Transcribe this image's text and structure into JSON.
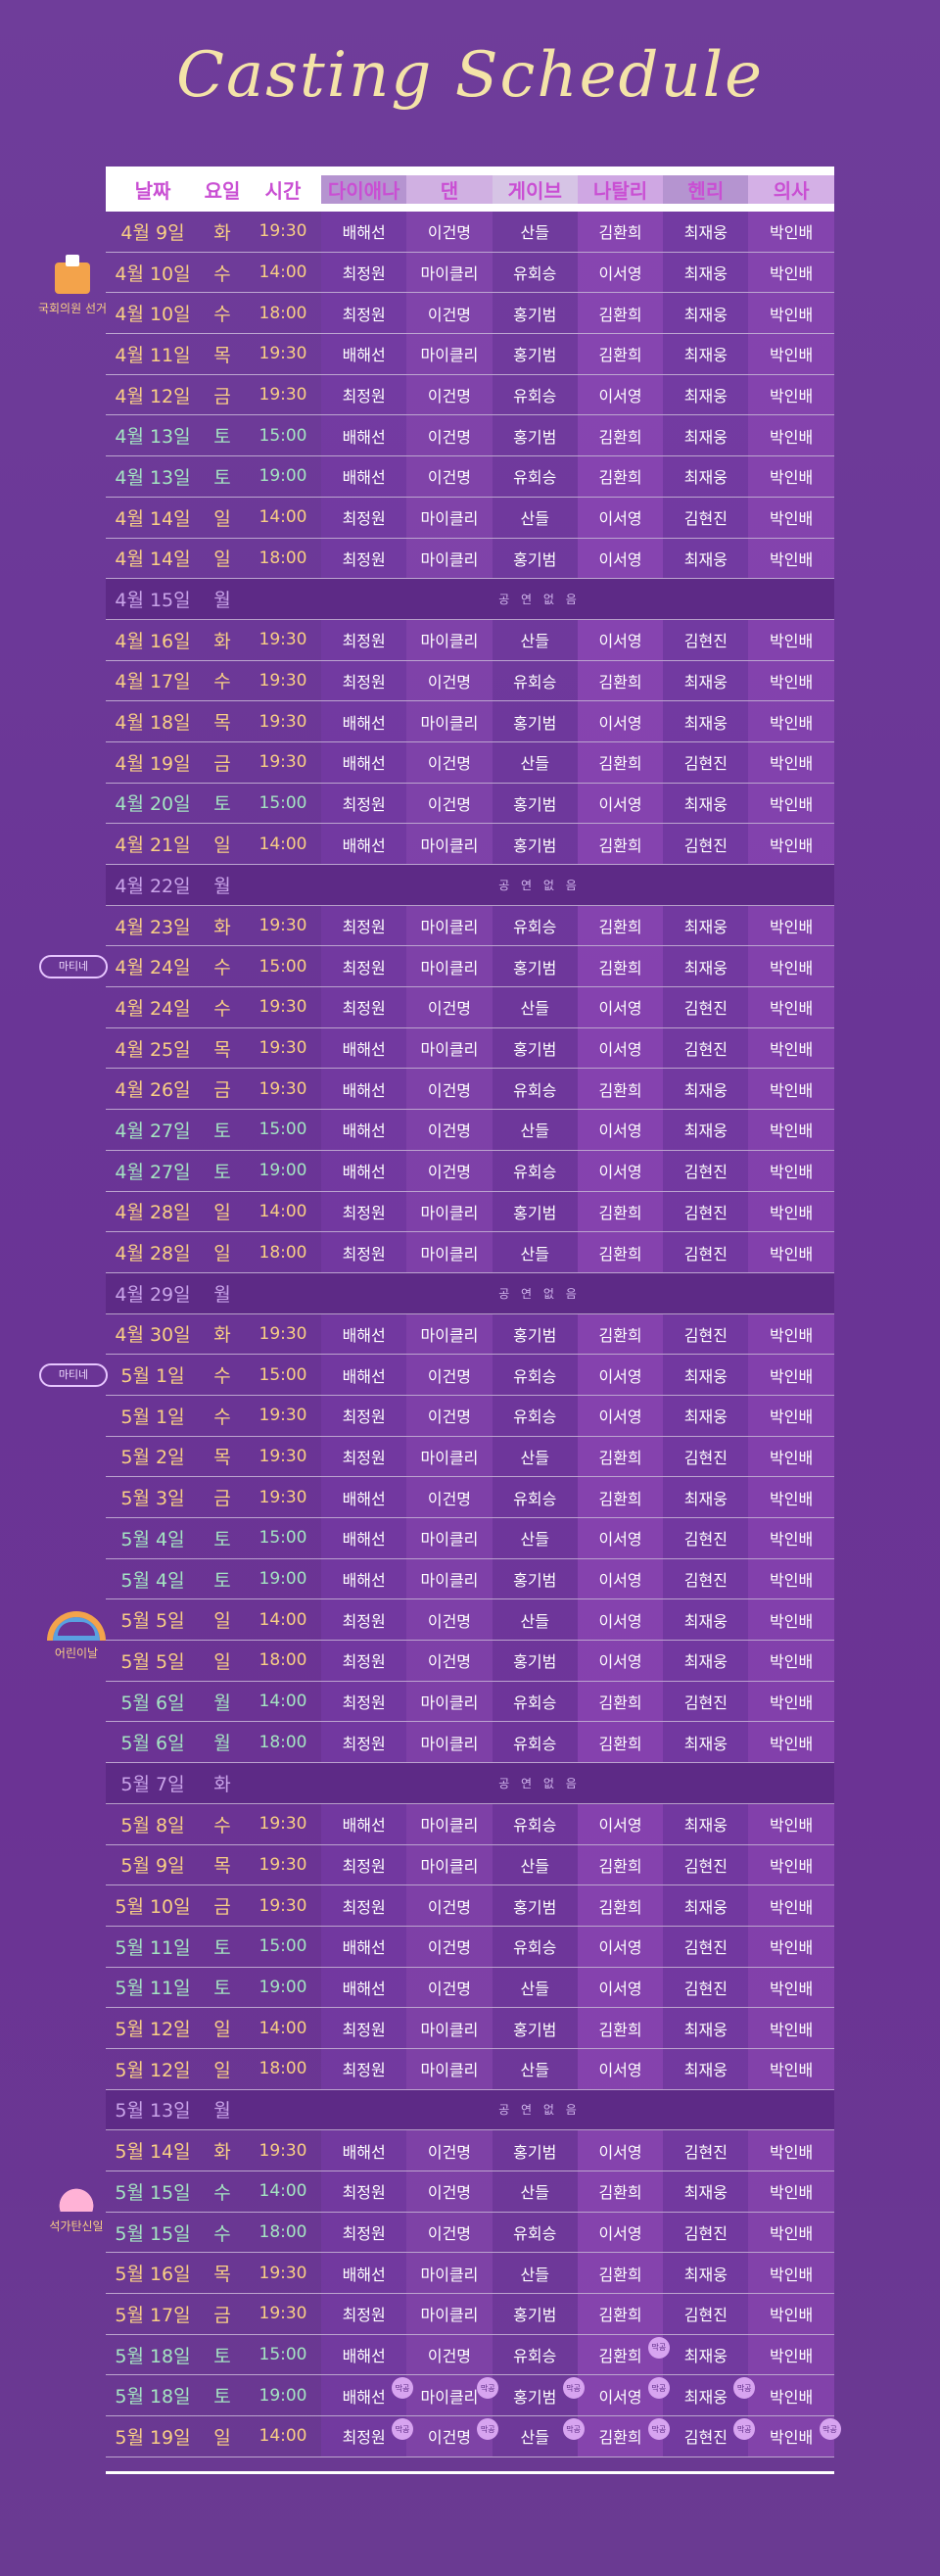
{
  "title": "Casting Schedule",
  "headers": [
    "날짜",
    "요일",
    "시간",
    "다이애나",
    "댄",
    "게이브",
    "나탈리",
    "헨리",
    "의사"
  ],
  "no_show_text": "공 연 없 음",
  "side_labels": {
    "election": "국회의원 선거",
    "matinee1": "마티네",
    "matinee2": "마티네",
    "childrens_day": "어린이날",
    "buddha": "석가탄신일"
  },
  "badge_text": "막공",
  "rows": [
    {
      "date": "4월 9일",
      "day": "화",
      "time": "19:30",
      "cast": [
        "배해선",
        "이건명",
        "산들",
        "김환희",
        "최재웅",
        "박인배"
      ]
    },
    {
      "date": "4월 10일",
      "day": "수",
      "time": "14:00",
      "cast": [
        "최정원",
        "마이클리",
        "유회승",
        "이서영",
        "최재웅",
        "박인배"
      ]
    },
    {
      "date": "4월 10일",
      "day": "수",
      "time": "18:00",
      "cast": [
        "최정원",
        "이건명",
        "홍기범",
        "김환희",
        "최재웅",
        "박인배"
      ]
    },
    {
      "date": "4월 11일",
      "day": "목",
      "time": "19:30",
      "cast": [
        "배해선",
        "마이클리",
        "홍기범",
        "김환희",
        "최재웅",
        "박인배"
      ]
    },
    {
      "date": "4월 12일",
      "day": "금",
      "time": "19:30",
      "cast": [
        "최정원",
        "이건명",
        "유회승",
        "이서영",
        "최재웅",
        "박인배"
      ]
    },
    {
      "date": "4월 13일",
      "day": "토",
      "time": "15:00",
      "green": true,
      "cast": [
        "배해선",
        "이건명",
        "홍기범",
        "김환희",
        "최재웅",
        "박인배"
      ]
    },
    {
      "date": "4월 13일",
      "day": "토",
      "time": "19:00",
      "green": true,
      "cast": [
        "배해선",
        "이건명",
        "유회승",
        "김환희",
        "최재웅",
        "박인배"
      ]
    },
    {
      "date": "4월 14일",
      "day": "일",
      "time": "14:00",
      "cast": [
        "최정원",
        "마이클리",
        "산들",
        "이서영",
        "김현진",
        "박인배"
      ]
    },
    {
      "date": "4월 14일",
      "day": "일",
      "time": "18:00",
      "cast": [
        "최정원",
        "마이클리",
        "홍기범",
        "이서영",
        "최재웅",
        "박인배"
      ]
    },
    {
      "date": "4월 15일",
      "day": "월",
      "off": true
    },
    {
      "date": "4월 16일",
      "day": "화",
      "time": "19:30",
      "cast": [
        "최정원",
        "마이클리",
        "산들",
        "이서영",
        "김현진",
        "박인배"
      ]
    },
    {
      "date": "4월 17일",
      "day": "수",
      "time": "19:30",
      "cast": [
        "최정원",
        "이건명",
        "유회승",
        "김환희",
        "최재웅",
        "박인배"
      ]
    },
    {
      "date": "4월 18일",
      "day": "목",
      "time": "19:30",
      "cast": [
        "배해선",
        "마이클리",
        "홍기범",
        "이서영",
        "최재웅",
        "박인배"
      ]
    },
    {
      "date": "4월 19일",
      "day": "금",
      "time": "19:30",
      "cast": [
        "배해선",
        "이건명",
        "산들",
        "김환희",
        "김현진",
        "박인배"
      ]
    },
    {
      "date": "4월 20일",
      "day": "토",
      "time": "15:00",
      "green": true,
      "cast": [
        "최정원",
        "이건명",
        "홍기범",
        "이서영",
        "최재웅",
        "박인배"
      ]
    },
    {
      "date": "4월 21일",
      "day": "일",
      "time": "14:00",
      "cast": [
        "배해선",
        "마이클리",
        "홍기범",
        "김환희",
        "김현진",
        "박인배"
      ]
    },
    {
      "date": "4월 22일",
      "day": "월",
      "off": true
    },
    {
      "date": "4월 23일",
      "day": "화",
      "time": "19:30",
      "cast": [
        "최정원",
        "마이클리",
        "유회승",
        "김환희",
        "최재웅",
        "박인배"
      ]
    },
    {
      "date": "4월 24일",
      "day": "수",
      "time": "15:00",
      "cast": [
        "최정원",
        "마이클리",
        "홍기범",
        "김환희",
        "최재웅",
        "박인배"
      ]
    },
    {
      "date": "4월 24일",
      "day": "수",
      "time": "19:30",
      "cast": [
        "최정원",
        "이건명",
        "산들",
        "이서영",
        "김현진",
        "박인배"
      ]
    },
    {
      "date": "4월 25일",
      "day": "목",
      "time": "19:30",
      "cast": [
        "배해선",
        "마이클리",
        "홍기범",
        "이서영",
        "김현진",
        "박인배"
      ]
    },
    {
      "date": "4월 26일",
      "day": "금",
      "time": "19:30",
      "cast": [
        "배해선",
        "이건명",
        "유회승",
        "김환희",
        "최재웅",
        "박인배"
      ]
    },
    {
      "date": "4월 27일",
      "day": "토",
      "time": "15:00",
      "green": true,
      "cast": [
        "배해선",
        "이건명",
        "산들",
        "이서영",
        "최재웅",
        "박인배"
      ]
    },
    {
      "date": "4월 27일",
      "day": "토",
      "time": "19:00",
      "green": true,
      "cast": [
        "배해선",
        "이건명",
        "유회승",
        "이서영",
        "김현진",
        "박인배"
      ]
    },
    {
      "date": "4월 28일",
      "day": "일",
      "time": "14:00",
      "cast": [
        "최정원",
        "마이클리",
        "홍기범",
        "김환희",
        "김현진",
        "박인배"
      ]
    },
    {
      "date": "4월 28일",
      "day": "일",
      "time": "18:00",
      "cast": [
        "최정원",
        "마이클리",
        "산들",
        "김환희",
        "김현진",
        "박인배"
      ]
    },
    {
      "date": "4월 29일",
      "day": "월",
      "off": true
    },
    {
      "date": "4월 30일",
      "day": "화",
      "time": "19:30",
      "cast": [
        "배해선",
        "마이클리",
        "홍기범",
        "김환희",
        "김현진",
        "박인배"
      ]
    },
    {
      "date": "5월 1일",
      "day": "수",
      "time": "15:00",
      "cast": [
        "배해선",
        "이건명",
        "유회승",
        "이서영",
        "최재웅",
        "박인배"
      ]
    },
    {
      "date": "5월 1일",
      "day": "수",
      "time": "19:30",
      "cast": [
        "최정원",
        "이건명",
        "유회승",
        "이서영",
        "최재웅",
        "박인배"
      ]
    },
    {
      "date": "5월 2일",
      "day": "목",
      "time": "19:30",
      "cast": [
        "최정원",
        "마이클리",
        "산들",
        "김환희",
        "김현진",
        "박인배"
      ]
    },
    {
      "date": "5월 3일",
      "day": "금",
      "time": "19:30",
      "cast": [
        "배해선",
        "이건명",
        "유회승",
        "김환희",
        "최재웅",
        "박인배"
      ]
    },
    {
      "date": "5월 4일",
      "day": "토",
      "time": "15:00",
      "green": true,
      "cast": [
        "배해선",
        "마이클리",
        "산들",
        "이서영",
        "김현진",
        "박인배"
      ]
    },
    {
      "date": "5월 4일",
      "day": "토",
      "time": "19:00",
      "green": true,
      "cast": [
        "배해선",
        "마이클리",
        "홍기범",
        "이서영",
        "김현진",
        "박인배"
      ]
    },
    {
      "date": "5월 5일",
      "day": "일",
      "time": "14:00",
      "cast": [
        "최정원",
        "이건명",
        "산들",
        "이서영",
        "최재웅",
        "박인배"
      ]
    },
    {
      "date": "5월 5일",
      "day": "일",
      "time": "18:00",
      "cast": [
        "최정원",
        "이건명",
        "홍기범",
        "이서영",
        "최재웅",
        "박인배"
      ]
    },
    {
      "date": "5월 6일",
      "day": "월",
      "time": "14:00",
      "green": true,
      "cast": [
        "최정원",
        "마이클리",
        "유회승",
        "김환희",
        "김현진",
        "박인배"
      ]
    },
    {
      "date": "5월 6일",
      "day": "월",
      "time": "18:00",
      "green": true,
      "cast": [
        "최정원",
        "마이클리",
        "유회승",
        "김환희",
        "최재웅",
        "박인배"
      ]
    },
    {
      "date": "5월 7일",
      "day": "화",
      "off": true
    },
    {
      "date": "5월 8일",
      "day": "수",
      "time": "19:30",
      "cast": [
        "배해선",
        "마이클리",
        "유회승",
        "이서영",
        "최재웅",
        "박인배"
      ]
    },
    {
      "date": "5월 9일",
      "day": "목",
      "time": "19:30",
      "cast": [
        "최정원",
        "마이클리",
        "산들",
        "김환희",
        "김현진",
        "박인배"
      ]
    },
    {
      "date": "5월 10일",
      "day": "금",
      "time": "19:30",
      "cast": [
        "최정원",
        "이건명",
        "홍기범",
        "김환희",
        "최재웅",
        "박인배"
      ]
    },
    {
      "date": "5월 11일",
      "day": "토",
      "time": "15:00",
      "green": true,
      "cast": [
        "배해선",
        "이건명",
        "유회승",
        "이서영",
        "김현진",
        "박인배"
      ]
    },
    {
      "date": "5월 11일",
      "day": "토",
      "time": "19:00",
      "green": true,
      "cast": [
        "배해선",
        "이건명",
        "산들",
        "이서영",
        "김현진",
        "박인배"
      ]
    },
    {
      "date": "5월 12일",
      "day": "일",
      "time": "14:00",
      "cast": [
        "최정원",
        "마이클리",
        "홍기범",
        "김환희",
        "최재웅",
        "박인배"
      ]
    },
    {
      "date": "5월 12일",
      "day": "일",
      "time": "18:00",
      "cast": [
        "최정원",
        "마이클리",
        "산들",
        "이서영",
        "최재웅",
        "박인배"
      ]
    },
    {
      "date": "5월 13일",
      "day": "월",
      "off": true
    },
    {
      "date": "5월 14일",
      "day": "화",
      "time": "19:30",
      "cast": [
        "배해선",
        "이건명",
        "홍기범",
        "이서영",
        "김현진",
        "박인배"
      ]
    },
    {
      "date": "5월 15일",
      "day": "수",
      "time": "14:00",
      "green": true,
      "cast": [
        "최정원",
        "이건명",
        "산들",
        "김환희",
        "최재웅",
        "박인배"
      ]
    },
    {
      "date": "5월 15일",
      "day": "수",
      "time": "18:00",
      "green": true,
      "cast": [
        "최정원",
        "이건명",
        "유회승",
        "이서영",
        "김현진",
        "박인배"
      ]
    },
    {
      "date": "5월 16일",
      "day": "목",
      "time": "19:30",
      "cast": [
        "배해선",
        "마이클리",
        "산들",
        "김환희",
        "최재웅",
        "박인배"
      ]
    },
    {
      "date": "5월 17일",
      "day": "금",
      "time": "19:30",
      "cast": [
        "최정원",
        "마이클리",
        "홍기범",
        "김환희",
        "김현진",
        "박인배"
      ]
    },
    {
      "date": "5월 18일",
      "day": "토",
      "time": "15:00",
      "green": true,
      "cast": [
        "배해선",
        "이건명",
        "유회승",
        "김환희",
        "최재웅",
        "박인배"
      ]
    },
    {
      "date": "5월 18일",
      "day": "토",
      "time": "19:00",
      "green": true,
      "cast": [
        "배해선",
        "마이클리",
        "홍기범",
        "이서영",
        "최재웅",
        "박인배"
      ]
    },
    {
      "date": "5월 19일",
      "day": "일",
      "time": "14:00",
      "cast": [
        "최정원",
        "이건명",
        "산들",
        "김환희",
        "김현진",
        "박인배"
      ]
    }
  ]
}
